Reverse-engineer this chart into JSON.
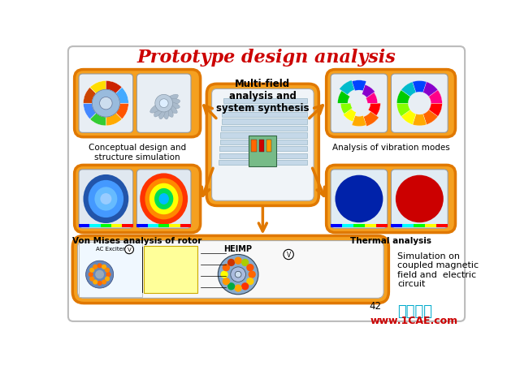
{
  "title": "Prototype design analysis",
  "title_color": "#CC0000",
  "title_fontsize": 16,
  "bg_color": "#FFFFFF",
  "orange_color": "#F5A020",
  "dark_orange": "#E07800",
  "labels": {
    "top_left": "Conceptual design and\nstructure simulation",
    "bottom_left": "Von Mises analysis of rotor",
    "top_center": "Multi-field\nanalysis and\nsystem synthesis",
    "top_right": "Analysis of vibration modes",
    "bottom_right": "Thermal analysis",
    "bottom_wide": "Simulation on\ncoupled magnetic\nfield and  electric\ncircuit",
    "bottom_circuit": "HEIMP"
  },
  "page_num": "42",
  "watermark1": "仿真在线",
  "watermark2": "www.1CAE.com",
  "watermark1_color": "#00AACC",
  "watermark2_color": "#CC0000"
}
